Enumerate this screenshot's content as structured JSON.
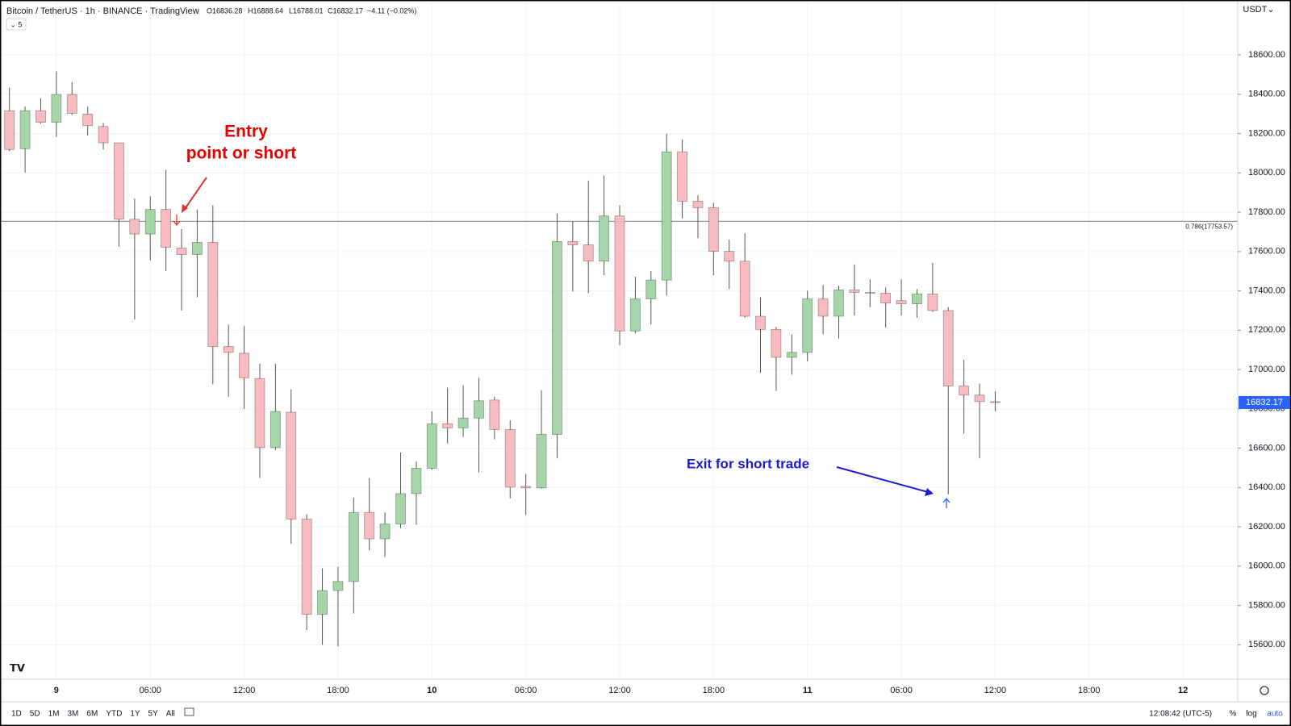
{
  "header": {
    "symbol": "Bitcoin / TetherUS · 1h · BINANCE · TradingView",
    "ohlc": [
      "O16836.28",
      "H16888.64",
      "L16788.01",
      "C16832.17"
    ],
    "change": "−4.11 (−0.02%)",
    "indicator_toggle": "⌄ 5",
    "currency": "USDT⌄"
  },
  "chart_data": {
    "type": "candlestick",
    "categories": [
      null,
      null,
      null,
      "9",
      null,
      null,
      null,
      null,
      null,
      "06:00",
      null,
      null,
      null,
      null,
      null,
      "12:00",
      null,
      null,
      null,
      null,
      null,
      "18:00",
      null,
      null,
      null,
      null,
      null,
      "10",
      null,
      null,
      null,
      null,
      null,
      "06:00",
      null,
      null,
      null,
      null,
      null,
      "12:00",
      null,
      null,
      null,
      null,
      null,
      "18:00",
      null,
      null,
      null,
      null,
      null,
      "11",
      null,
      null,
      null,
      null,
      null,
      "06:00",
      null,
      null,
      null,
      null,
      null,
      "12:00",
      null,
      null,
      null,
      null,
      null,
      "18:00",
      null,
      null,
      null,
      null,
      null,
      "12",
      null,
      null,
      null
    ],
    "open": [
      18316,
      18123,
      18316,
      18257,
      18399,
      18299,
      18236,
      18153,
      17764,
      17689,
      17814,
      17618,
      17585,
      17647,
      17117,
      17083,
      16954,
      16603,
      16783,
      16239,
      15755,
      15876,
      15922,
      16273,
      16139,
      16214,
      16369,
      16498,
      16724,
      16703,
      16753,
      16845,
      16695,
      16406,
      16398,
      16670,
      17651,
      17634,
      17551,
      17781,
      17196,
      17359,
      17455,
      18107,
      17856,
      17823,
      17601,
      17551,
      17271,
      17204,
      17062,
      17087,
      17359,
      17271,
      17405,
      17392,
      17388,
      17350,
      17334,
      17384,
      17300,
      16916,
      16870,
      16836.28,
      null,
      null,
      null,
      null,
      null,
      null,
      null,
      null,
      null,
      null,
      null,
      null,
      null,
      null,
      null
    ],
    "high": [
      18433,
      18337,
      18378,
      18516,
      18462,
      18337,
      18253,
      18153,
      17869,
      17881,
      18015,
      17714,
      17814,
      17835,
      17229,
      17221,
      17029,
      17029,
      16899,
      16264,
      15989,
      15997,
      16348,
      16448,
      16273,
      16578,
      16532,
      16787,
      16908,
      16920,
      16958,
      16862,
      16741,
      16469,
      16895,
      17793,
      17752,
      17961,
      17986,
      17835,
      17472,
      17501,
      18199,
      18170,
      17885,
      17848,
      17660,
      17693,
      17367,
      17217,
      17179,
      17401,
      17430,
      17426,
      17534,
      17459,
      17417,
      17459,
      17409,
      17543,
      17317,
      17050,
      16929,
      16888.64,
      null,
      null,
      null,
      null,
      null,
      null,
      null,
      null,
      null,
      null,
      null,
      null,
      null,
      null,
      null
    ],
    "low": [
      18110,
      18002,
      18250,
      18182,
      18295,
      18190,
      18119,
      17626,
      17254,
      17555,
      17501,
      17300,
      17367,
      16924,
      16862,
      16800,
      16448,
      16590,
      16114,
      15675,
      15600,
      15592,
      15759,
      16080,
      16047,
      16193,
      16210,
      16490,
      16624,
      16657,
      16477,
      16645,
      16344,
      16260,
      16394,
      16548,
      17397,
      17388,
      17480,
      17125,
      17183,
      17229,
      17376,
      17768,
      17668,
      17480,
      17409,
      17263,
      16983,
      16891,
      16974,
      17041,
      17179,
      17158,
      17275,
      17317,
      17213,
      17275,
      17263,
      17292,
      16365,
      16674,
      16548,
      16788.01,
      null,
      null,
      null,
      null,
      null,
      null,
      null,
      null,
      null,
      null,
      null,
      null,
      null,
      null,
      null
    ],
    "close": [
      18119,
      18316,
      18257,
      18399,
      18303,
      18240,
      18153,
      17764,
      17689,
      17814,
      17622,
      17585,
      17647,
      17117,
      17087,
      16958,
      16603,
      16787,
      16239,
      15755,
      15876,
      15922,
      16273,
      16139,
      16214,
      16369,
      16498,
      16724,
      16703,
      16753,
      16841,
      16695,
      16402,
      16398,
      16670,
      17651,
      17634,
      17551,
      17781,
      17196,
      17359,
      17455,
      18107,
      17856,
      17823,
      17601,
      17551,
      17271,
      17204,
      17062,
      17087,
      17359,
      17271,
      17405,
      17392,
      17388,
      17338,
      17334,
      17384,
      17300,
      16916,
      16870,
      16837,
      16832.17,
      null,
      null,
      null,
      null,
      null,
      null,
      null,
      null,
      null,
      null,
      null,
      null,
      null,
      null,
      null
    ],
    "up_color": "#a5d6a7",
    "down_color": "#f8bbbf",
    "ylim": [
      15425,
      18871
    ],
    "yticks": [
      {
        "value": 15600,
        "label": "15600.00"
      },
      {
        "value": 15800,
        "label": "15800.00"
      },
      {
        "value": 16000,
        "label": "16000.00"
      },
      {
        "value": 16200,
        "label": "16200.00"
      },
      {
        "value": 16400,
        "label": "16400.00"
      },
      {
        "value": 16600,
        "label": "16600.00"
      },
      {
        "value": 16800,
        "label": "16800.00"
      },
      {
        "value": 17000,
        "label": "17000.00"
      },
      {
        "value": 17200,
        "label": "17200.00"
      },
      {
        "value": 17400,
        "label": "17400.00"
      },
      {
        "value": 17600,
        "label": "17600.00"
      },
      {
        "value": 17800,
        "label": "17800.00"
      },
      {
        "value": 18000,
        "label": "18000.00"
      },
      {
        "value": 18200,
        "label": "18200.00"
      },
      {
        "value": 18400,
        "label": "18400.00"
      },
      {
        "value": 18600,
        "label": "18600.00"
      }
    ],
    "grid": true,
    "hline": {
      "value": 17753.57,
      "label": "0.786(17753.57)"
    },
    "entry_annotation": [
      "Entry",
      "point or short"
    ],
    "exit_annotation": "Exit for short trade"
  },
  "toolbar": {
    "periods": [
      "1D",
      "5D",
      "1M",
      "3M",
      "6M",
      "YTD",
      "1Y",
      "5Y",
      "All"
    ],
    "clock": "12:08:42 (UTC-5)",
    "options": [
      "%",
      "log",
      "auto"
    ]
  }
}
